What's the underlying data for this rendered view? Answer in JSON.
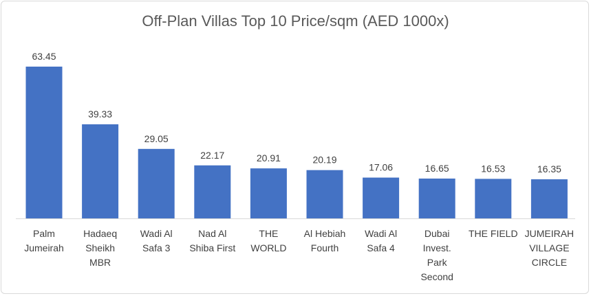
{
  "chart_data": {
    "type": "bar",
    "title": "Off-Plan Villas Top 10 Price/sqm (AED 1000x)",
    "xlabel": "",
    "ylabel": "",
    "categories": [
      [
        "Palm",
        "Jumeirah"
      ],
      [
        "Hadaeq",
        "Sheikh",
        "MBR"
      ],
      [
        "Wadi Al",
        "Safa 3"
      ],
      [
        "Nad Al",
        "Shiba First"
      ],
      [
        "THE",
        "WORLD"
      ],
      [
        "Al Hebiah",
        "Fourth"
      ],
      [
        "Wadi Al",
        "Safa 4"
      ],
      [
        "Dubai",
        "Invest.",
        "Park",
        "Second"
      ],
      [
        "THE FIELD"
      ],
      [
        "JUMEIRAH",
        "VILLAGE",
        "CIRCLE"
      ]
    ],
    "values": [
      63.45,
      39.33,
      29.05,
      22.17,
      20.91,
      20.19,
      17.06,
      16.65,
      16.53,
      16.35
    ],
    "value_labels": [
      "63.45",
      "39.33",
      "29.05",
      "22.17",
      "20.91",
      "20.19",
      "17.06",
      "16.65",
      "16.53",
      "16.35"
    ],
    "ylim": [
      0,
      63.45
    ],
    "grid": false,
    "bar_color": "#4472c4",
    "axis_color": "#d9d9d9"
  }
}
